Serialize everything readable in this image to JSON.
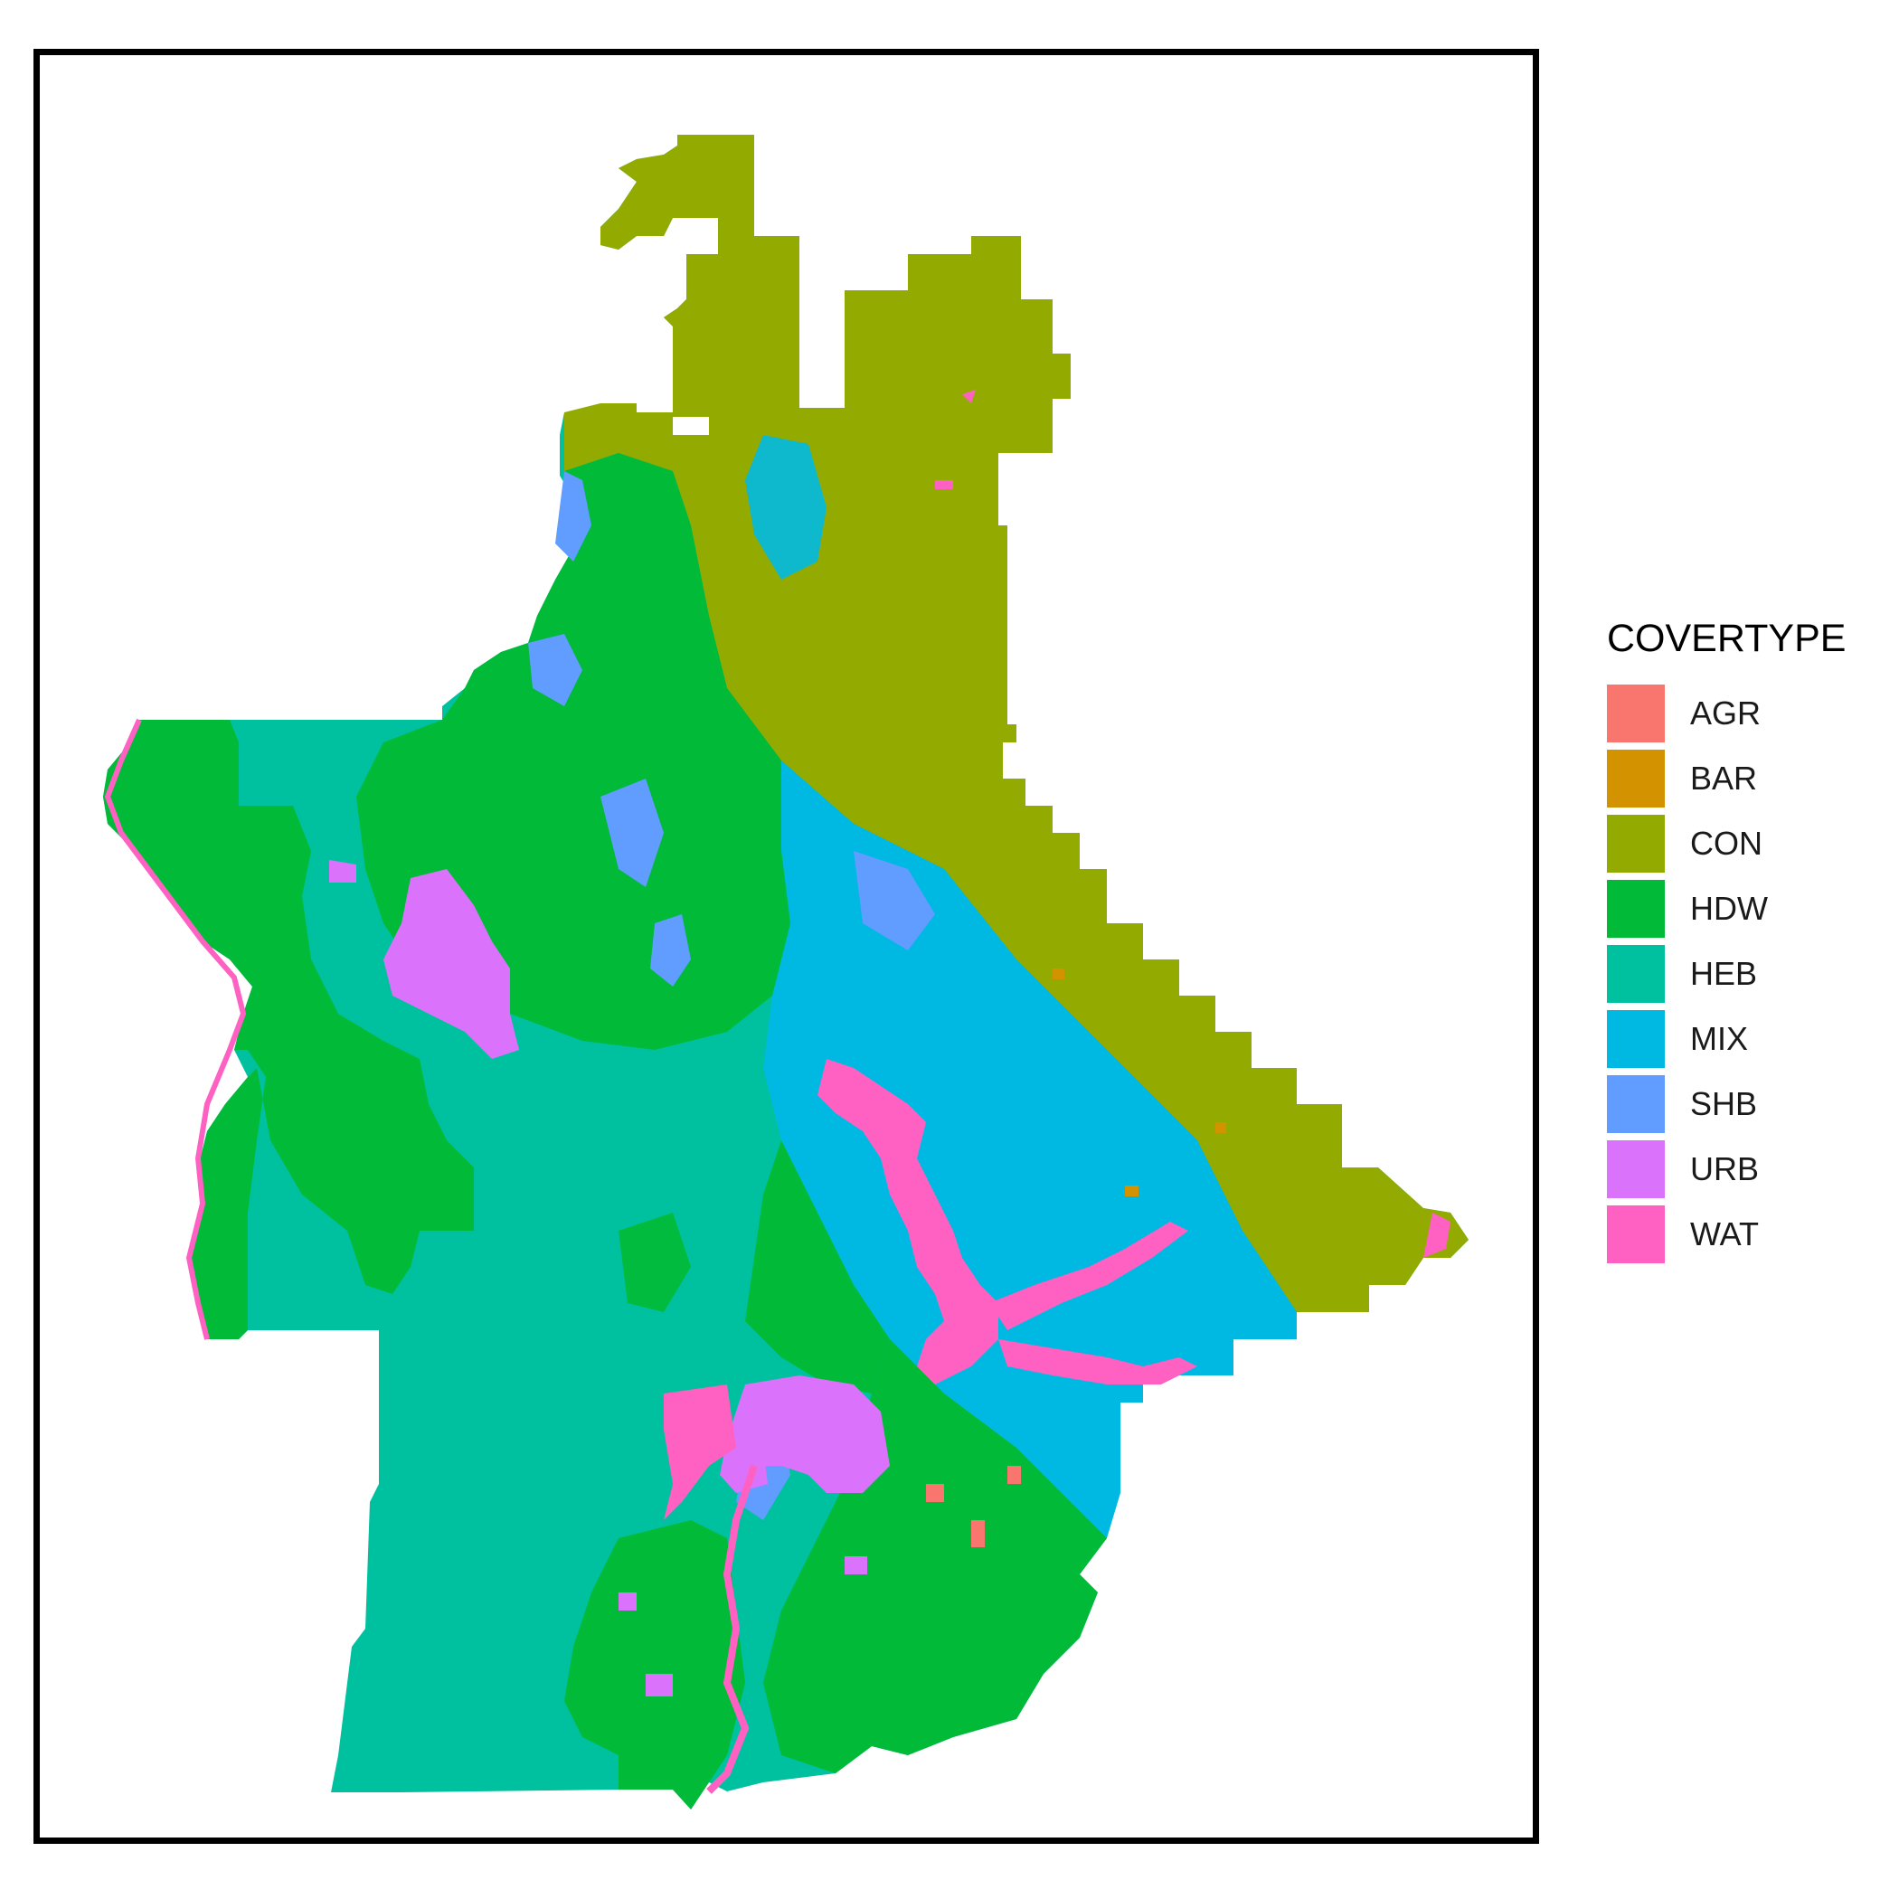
{
  "legend": {
    "title": "COVERTYPE",
    "items": [
      {
        "code": "AGR",
        "color": "#F8766D"
      },
      {
        "code": "BAR",
        "color": "#D39200"
      },
      {
        "code": "CON",
        "color": "#93AA00"
      },
      {
        "code": "HDW",
        "color": "#00BA38"
      },
      {
        "code": "HEB",
        "color": "#00C19F"
      },
      {
        "code": "MIX",
        "color": "#00B9E3"
      },
      {
        "code": "SHB",
        "color": "#619CFF"
      },
      {
        "code": "URB",
        "color": "#DB72FB"
      },
      {
        "code": "WAT",
        "color": "#FF61C3"
      }
    ]
  }
}
